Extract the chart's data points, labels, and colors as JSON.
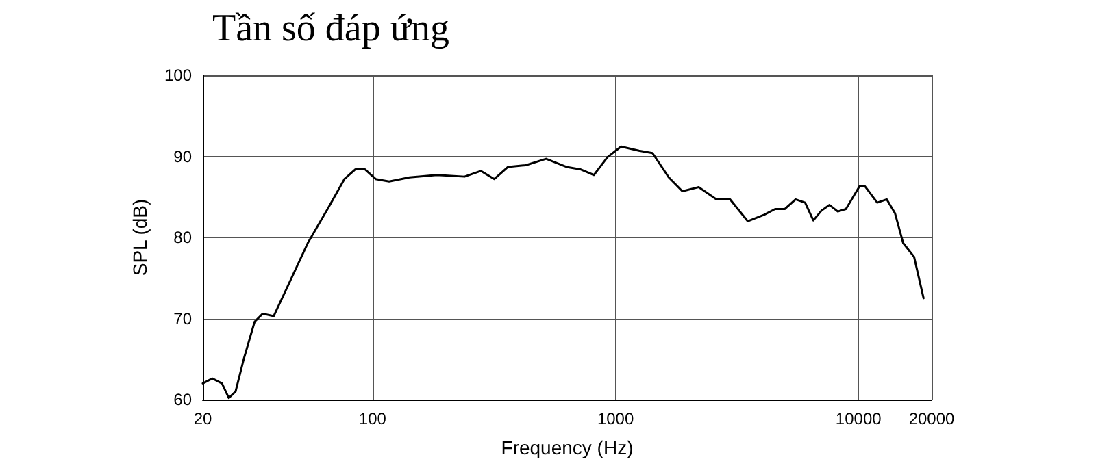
{
  "chart_data": {
    "type": "line",
    "title": "Tần số đáp ứng",
    "xlabel": "Frequency (Hz)",
    "ylabel": "SPL (dB)",
    "x": [
      20,
      21.9,
      24,
      25.6,
      27.3,
      29.5,
      32.7,
      35.3,
      39.2,
      44.6,
      54.1,
      65.6,
      76.6,
      85,
      93,
      103,
      117,
      142,
      184,
      239,
      279,
      317,
      361,
      427,
      518,
      628,
      716,
      815,
      927,
      1054,
      1248,
      1420,
      1657,
      1884,
      2200,
      2600,
      2960,
      3500,
      4090,
      4540,
      4970,
      5510,
      6030,
      6520,
      7040,
      7600,
      8220,
      8880,
      10100,
      10640,
      11950,
      13070,
      14130,
      15280,
      16940,
      18540
    ],
    "series": [
      {
        "color": "#000000",
        "values": [
          62,
          62.6,
          62,
          60.2,
          61,
          65,
          69.6,
          70.6,
          70.3,
          73.9,
          79.3,
          83.6,
          87.2,
          88.4,
          88.4,
          87.2,
          86.9,
          87.4,
          87.7,
          87.5,
          88.2,
          87.2,
          88.7,
          88.9,
          89.7,
          88.7,
          88.4,
          87.7,
          89.9,
          91.2,
          90.7,
          90.4,
          87.4,
          85.7,
          86.2,
          84.7,
          84.7,
          82,
          82.8,
          83.5,
          83.5,
          84.7,
          84.3,
          82.1,
          83.3,
          84,
          83.2,
          83.5,
          86.3,
          86.3,
          84.3,
          84.7,
          83,
          79.3,
          77.6,
          72.5
        ]
      }
    ],
    "log": "x",
    "xlim": [
      20,
      20000
    ],
    "xticks": [
      20,
      100,
      1000,
      10000,
      20000
    ],
    "ylim": [
      60,
      100
    ],
    "yticks": [
      60,
      70,
      80,
      90,
      100
    ],
    "grid": true,
    "marker": "none",
    "line_style": "solid"
  }
}
